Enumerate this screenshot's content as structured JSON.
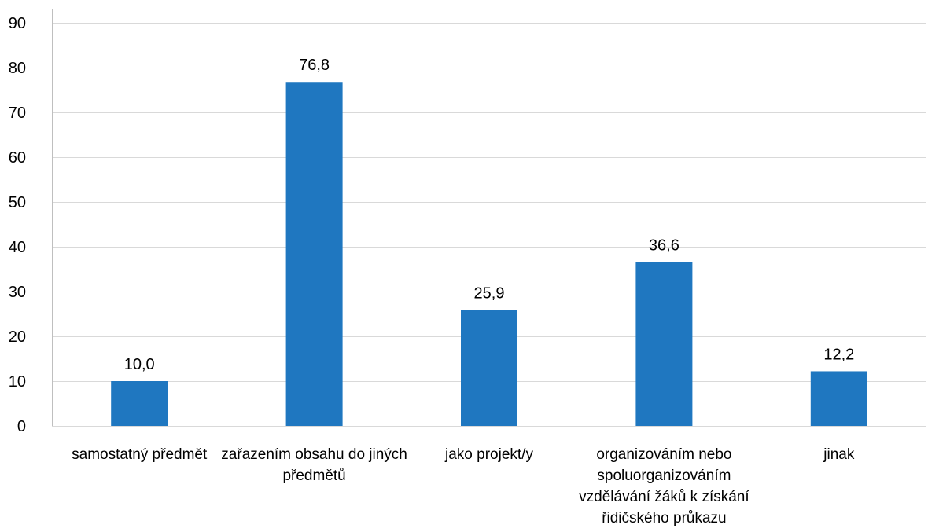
{
  "chart_data": {
    "type": "bar",
    "title": "",
    "xlabel": "",
    "ylabel": "",
    "ylim": [
      0,
      90
    ],
    "y_ticks": [
      "0",
      "10",
      "20",
      "30",
      "40",
      "50",
      "60",
      "70",
      "80",
      "90"
    ],
    "grid": true,
    "legend": "none",
    "bar_color": "#1f77c0",
    "categories": [
      [
        "samostatný předmět"
      ],
      [
        "zařazením obsahu do jiných",
        "předmětů"
      ],
      [
        "jako projekt/y"
      ],
      [
        "organizováním nebo",
        "spoluorganizováním",
        "vzdělávání žáků k získání",
        "řidičského průkazu"
      ],
      [
        "jinak"
      ]
    ],
    "values": [
      10.0,
      76.8,
      25.9,
      36.6,
      12.2
    ],
    "data_labels": [
      "10,0",
      "76,8",
      "25,9",
      "36,6",
      "12,2"
    ]
  }
}
